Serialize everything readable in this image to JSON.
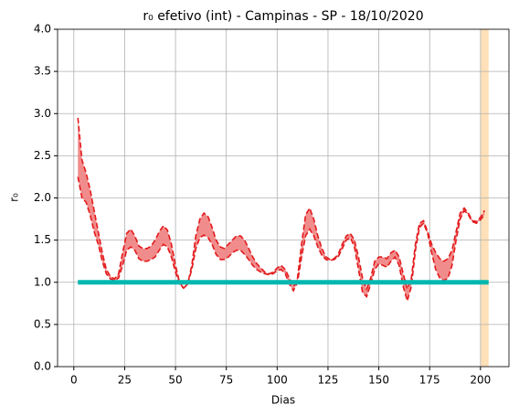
{
  "chart_data": {
    "type": "band",
    "title": "r₀ efetivo (int) - Campinas - SP - 18/10/2020",
    "xlabel": "Dias",
    "ylabel": "r₀",
    "xlim": [
      -8,
      214
    ],
    "ylim": [
      0,
      4
    ],
    "xticks": [
      0,
      25,
      50,
      75,
      100,
      125,
      150,
      175,
      200
    ],
    "yticks": [
      {
        "value": 0,
        "label": "0.0"
      },
      {
        "value": 0.5,
        "label": "0.5"
      },
      {
        "value": 1,
        "label": "1.0"
      },
      {
        "value": 1.5,
        "label": "1.5"
      },
      {
        "value": 2,
        "label": "2.0"
      },
      {
        "value": 2.5,
        "label": "2.5"
      },
      {
        "value": 3,
        "label": "3.0"
      },
      {
        "value": 3.5,
        "label": "3.5"
      },
      {
        "value": 4,
        "label": "4.0"
      }
    ],
    "grid": true,
    "span": {
      "x": [
        200,
        204
      ],
      "color": "#ffe0b8"
    },
    "reference": {
      "x": [
        2,
        204
      ],
      "values": [
        1,
        1
      ],
      "color": "#00b8b0"
    },
    "band": {
      "color": "#e31a1c",
      "fill": "#f08080",
      "x": [
        2,
        4,
        6,
        8,
        10,
        12,
        14,
        16,
        18,
        20,
        22,
        24,
        26,
        28,
        30,
        32,
        34,
        36,
        38,
        40,
        42,
        44,
        46,
        48,
        50,
        52,
        54,
        56,
        58,
        60,
        62,
        64,
        66,
        68,
        70,
        72,
        74,
        76,
        78,
        80,
        82,
        84,
        86,
        88,
        90,
        92,
        94,
        96,
        98,
        100,
        102,
        104,
        106,
        108,
        110,
        112,
        114,
        116,
        118,
        120,
        122,
        124,
        126,
        128,
        130,
        132,
        134,
        136,
        138,
        140,
        142,
        144,
        146,
        148,
        150,
        152,
        154,
        156,
        158,
        160,
        162,
        164,
        166,
        168,
        170,
        172,
        174,
        176,
        178,
        180,
        182,
        184,
        186,
        188,
        190,
        192,
        194,
        196,
        198,
        200,
        202
      ],
      "upper": [
        2.95,
        2.45,
        2.3,
        2.1,
        1.85,
        1.6,
        1.35,
        1.15,
        1.07,
        1.04,
        1.1,
        1.35,
        1.58,
        1.63,
        1.55,
        1.43,
        1.4,
        1.4,
        1.43,
        1.5,
        1.6,
        1.67,
        1.62,
        1.45,
        1.2,
        1.0,
        0.93,
        0.98,
        1.2,
        1.55,
        1.75,
        1.82,
        1.78,
        1.65,
        1.5,
        1.42,
        1.4,
        1.45,
        1.5,
        1.55,
        1.55,
        1.5,
        1.4,
        1.3,
        1.22,
        1.17,
        1.12,
        1.1,
        1.12,
        1.17,
        1.2,
        1.15,
        1.05,
        0.95,
        1.05,
        1.45,
        1.8,
        1.88,
        1.75,
        1.55,
        1.4,
        1.3,
        1.27,
        1.28,
        1.33,
        1.45,
        1.55,
        1.58,
        1.5,
        1.3,
        1.05,
        0.92,
        1.05,
        1.25,
        1.3,
        1.3,
        1.28,
        1.35,
        1.38,
        1.3,
        1.1,
        0.92,
        1.05,
        1.45,
        1.7,
        1.73,
        1.6,
        1.45,
        1.35,
        1.28,
        1.25,
        1.28,
        1.38,
        1.6,
        1.82,
        1.88,
        1.82,
        1.73,
        1.72,
        1.77,
        1.85
      ],
      "lower": [
        2.25,
        2.0,
        1.95,
        1.8,
        1.6,
        1.45,
        1.25,
        1.1,
        1.04,
        1.02,
        1.05,
        1.2,
        1.38,
        1.42,
        1.38,
        1.28,
        1.25,
        1.25,
        1.27,
        1.3,
        1.38,
        1.45,
        1.42,
        1.3,
        1.12,
        0.98,
        0.93,
        0.98,
        1.15,
        1.4,
        1.53,
        1.56,
        1.53,
        1.45,
        1.33,
        1.27,
        1.27,
        1.3,
        1.35,
        1.38,
        1.38,
        1.33,
        1.27,
        1.2,
        1.15,
        1.12,
        1.1,
        1.09,
        1.1,
        1.14,
        1.15,
        1.1,
        0.98,
        0.9,
        1.0,
        1.3,
        1.55,
        1.63,
        1.55,
        1.42,
        1.32,
        1.27,
        1.26,
        1.27,
        1.3,
        1.4,
        1.5,
        1.53,
        1.42,
        1.15,
        0.88,
        0.83,
        0.98,
        1.15,
        1.22,
        1.2,
        1.18,
        1.25,
        1.3,
        1.2,
        0.95,
        0.78,
        0.95,
        1.38,
        1.65,
        1.7,
        1.58,
        1.35,
        1.15,
        1.05,
        1.02,
        1.05,
        1.2,
        1.5,
        1.75,
        1.85,
        1.8,
        1.72,
        1.7,
        1.74,
        1.8
      ]
    }
  }
}
